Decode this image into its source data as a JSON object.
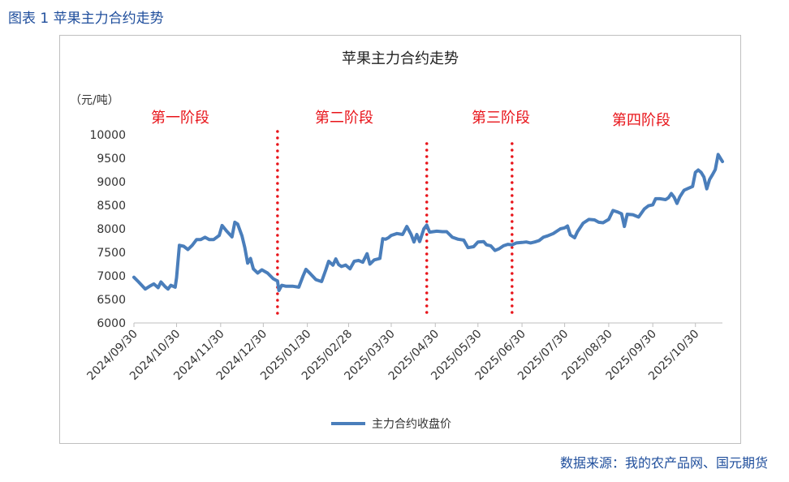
{
  "figure_caption": "图表 1  苹果主力合约走势",
  "source_note": "数据来源：我的农产品网、国元期货",
  "chart_data": {
    "type": "line",
    "title": "苹果主力合约走势",
    "ylabel": "（元/吨）",
    "ylim": [
      6000,
      10000
    ],
    "y_ticks": [
      10000,
      9500,
      9000,
      8500,
      8000,
      7500,
      7000,
      6500,
      6000
    ],
    "x_range": [
      "2024-09-30",
      "2025-11-18"
    ],
    "x_tick_labels": [
      "2024/09/30",
      "2024/10/30",
      "2024/11/30",
      "2024/12/30",
      "2025/01/30",
      "2025/02/28",
      "2025/03/30",
      "2025/04/30",
      "2025/05/30",
      "2025/06/30",
      "2025/07/30",
      "2025/08/30",
      "2025/09/30",
      "2025/10/30"
    ],
    "x_tick_dates": [
      "2024-09-30",
      "2024-10-30",
      "2024-11-30",
      "2024-12-30",
      "2025-01-30",
      "2025-02-28",
      "2025-03-30",
      "2025-04-30",
      "2025-05-30",
      "2025-06-30",
      "2025-07-30",
      "2025-08-30",
      "2025-09-30",
      "2025-10-30"
    ],
    "grid": false,
    "legend_position": "bottom-center",
    "series": [
      {
        "name": "主力合约收盘价",
        "color": "#4a7ebb",
        "points": [
          [
            "2024-09-30",
            6970
          ],
          [
            "2024-10-03",
            6880
          ],
          [
            "2024-10-08",
            6720
          ],
          [
            "2024-10-11",
            6780
          ],
          [
            "2024-10-14",
            6830
          ],
          [
            "2024-10-17",
            6750
          ],
          [
            "2024-10-19",
            6870
          ],
          [
            "2024-10-22",
            6770
          ],
          [
            "2024-10-24",
            6720
          ],
          [
            "2024-10-26",
            6800
          ],
          [
            "2024-10-29",
            6760
          ],
          [
            "2024-10-30",
            6960
          ],
          [
            "2024-11-01",
            7650
          ],
          [
            "2024-11-04",
            7630
          ],
          [
            "2024-11-07",
            7560
          ],
          [
            "2024-11-10",
            7650
          ],
          [
            "2024-11-13",
            7770
          ],
          [
            "2024-11-16",
            7770
          ],
          [
            "2024-11-19",
            7820
          ],
          [
            "2024-11-22",
            7770
          ],
          [
            "2024-11-25",
            7770
          ],
          [
            "2024-11-29",
            7860
          ],
          [
            "2024-12-01",
            8070
          ],
          [
            "2024-12-04",
            7960
          ],
          [
            "2024-12-08",
            7830
          ],
          [
            "2024-12-10",
            8140
          ],
          [
            "2024-12-12",
            8100
          ],
          [
            "2024-12-15",
            7850
          ],
          [
            "2024-12-17",
            7600
          ],
          [
            "2024-12-19",
            7270
          ],
          [
            "2024-12-21",
            7370
          ],
          [
            "2024-12-23",
            7150
          ],
          [
            "2024-12-26",
            7060
          ],
          [
            "2024-12-29",
            7130
          ],
          [
            "2025-01-02",
            7060
          ],
          [
            "2025-01-06",
            6940
          ],
          [
            "2025-01-09",
            6890
          ],
          [
            "2025-01-10",
            6690
          ],
          [
            "2025-01-12",
            6800
          ],
          [
            "2025-01-15",
            6780
          ],
          [
            "2025-01-20",
            6780
          ],
          [
            "2025-01-24",
            6760
          ],
          [
            "2025-01-27",
            7000
          ],
          [
            "2025-01-29",
            7140
          ],
          [
            "2025-02-01",
            7050
          ],
          [
            "2025-02-05",
            6920
          ],
          [
            "2025-02-09",
            6880
          ],
          [
            "2025-02-12",
            7130
          ],
          [
            "2025-02-14",
            7310
          ],
          [
            "2025-02-17",
            7230
          ],
          [
            "2025-02-19",
            7360
          ],
          [
            "2025-02-21",
            7240
          ],
          [
            "2025-02-23",
            7200
          ],
          [
            "2025-02-26",
            7230
          ],
          [
            "2025-03-01",
            7150
          ],
          [
            "2025-03-04",
            7310
          ],
          [
            "2025-03-07",
            7330
          ],
          [
            "2025-03-10",
            7290
          ],
          [
            "2025-03-13",
            7470
          ],
          [
            "2025-03-15",
            7250
          ],
          [
            "2025-03-18",
            7340
          ],
          [
            "2025-03-22",
            7370
          ],
          [
            "2025-03-24",
            7790
          ],
          [
            "2025-03-26",
            7780
          ],
          [
            "2025-03-28",
            7810
          ],
          [
            "2025-03-30",
            7860
          ],
          [
            "2025-04-03",
            7900
          ],
          [
            "2025-04-07",
            7880
          ],
          [
            "2025-04-10",
            8050
          ],
          [
            "2025-04-13",
            7880
          ],
          [
            "2025-04-15",
            7720
          ],
          [
            "2025-04-17",
            7880
          ],
          [
            "2025-04-19",
            7730
          ],
          [
            "2025-04-22",
            8000
          ],
          [
            "2025-04-24",
            8080
          ],
          [
            "2025-04-26",
            7930
          ],
          [
            "2025-05-01",
            7950
          ],
          [
            "2025-05-05",
            7940
          ],
          [
            "2025-05-08",
            7940
          ],
          [
            "2025-05-12",
            7820
          ],
          [
            "2025-05-16",
            7780
          ],
          [
            "2025-05-20",
            7760
          ],
          [
            "2025-05-23",
            7600
          ],
          [
            "2025-05-27",
            7620
          ],
          [
            "2025-05-30",
            7720
          ],
          [
            "2025-06-03",
            7730
          ],
          [
            "2025-06-05",
            7660
          ],
          [
            "2025-06-08",
            7640
          ],
          [
            "2025-06-11",
            7540
          ],
          [
            "2025-06-14",
            7580
          ],
          [
            "2025-06-17",
            7640
          ],
          [
            "2025-06-20",
            7670
          ],
          [
            "2025-06-23",
            7660
          ],
          [
            "2025-06-26",
            7700
          ],
          [
            "2025-06-30",
            7710
          ],
          [
            "2025-07-03",
            7720
          ],
          [
            "2025-07-06",
            7700
          ],
          [
            "2025-07-09",
            7720
          ],
          [
            "2025-07-12",
            7750
          ],
          [
            "2025-07-15",
            7820
          ],
          [
            "2025-07-18",
            7850
          ],
          [
            "2025-07-22",
            7900
          ],
          [
            "2025-07-27",
            8000
          ],
          [
            "2025-07-30",
            8020
          ],
          [
            "2025-08-01",
            8060
          ],
          [
            "2025-08-03",
            7870
          ],
          [
            "2025-08-06",
            7810
          ],
          [
            "2025-08-08",
            7940
          ],
          [
            "2025-08-12",
            8120
          ],
          [
            "2025-08-16",
            8200
          ],
          [
            "2025-08-20",
            8190
          ],
          [
            "2025-08-23",
            8140
          ],
          [
            "2025-08-26",
            8130
          ],
          [
            "2025-08-30",
            8200
          ],
          [
            "2025-09-02",
            8390
          ],
          [
            "2025-09-05",
            8360
          ],
          [
            "2025-09-08",
            8320
          ],
          [
            "2025-09-10",
            8050
          ],
          [
            "2025-09-12",
            8310
          ],
          [
            "2025-09-16",
            8300
          ],
          [
            "2025-09-20",
            8250
          ],
          [
            "2025-09-24",
            8420
          ],
          [
            "2025-09-27",
            8490
          ],
          [
            "2025-09-30",
            8510
          ],
          [
            "2025-10-02",
            8640
          ],
          [
            "2025-10-05",
            8640
          ],
          [
            "2025-10-09",
            8620
          ],
          [
            "2025-10-11",
            8660
          ],
          [
            "2025-10-13",
            8750
          ],
          [
            "2025-10-15",
            8670
          ],
          [
            "2025-10-17",
            8540
          ],
          [
            "2025-10-19",
            8680
          ],
          [
            "2025-10-22",
            8820
          ],
          [
            "2025-10-25",
            8860
          ],
          [
            "2025-10-28",
            8900
          ],
          [
            "2025-10-30",
            9200
          ],
          [
            "2025-11-01",
            9250
          ],
          [
            "2025-11-03",
            9200
          ],
          [
            "2025-11-05",
            9100
          ],
          [
            "2025-11-07",
            8850
          ],
          [
            "2025-11-09",
            9050
          ],
          [
            "2025-11-11",
            9150
          ],
          [
            "2025-11-13",
            9260
          ],
          [
            "2025-11-15",
            9580
          ],
          [
            "2025-11-17",
            9480
          ],
          [
            "2025-11-18",
            9430
          ]
        ]
      }
    ],
    "phase_labels": [
      "第一阶段",
      "第二阶段",
      "第三阶段",
      "第四阶段"
    ],
    "phase_dividers": [
      "2025-01-09",
      "2025-04-24",
      "2025-06-23"
    ],
    "phase_divider_color": "#e8141a"
  }
}
